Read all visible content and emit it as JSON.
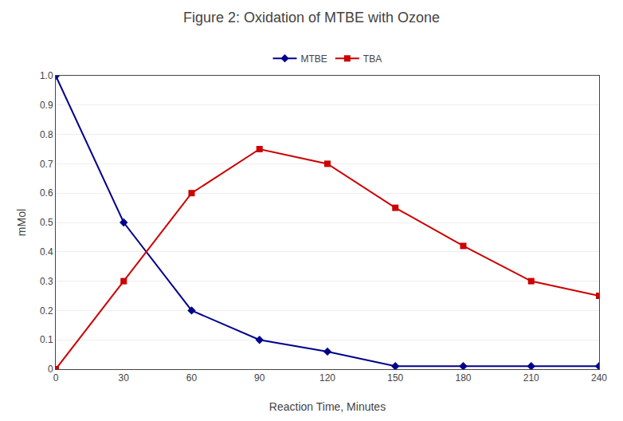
{
  "chart_data": {
    "type": "line",
    "title": "Figure 2: Oxidation of MTBE with Ozone",
    "x_label": "Reaction Time, Minutes",
    "y_label": "mMol",
    "x": [
      0,
      30,
      60,
      90,
      120,
      150,
      180,
      210,
      240
    ],
    "series": [
      {
        "name": "MTBE",
        "color": "#00008B",
        "marker": "diamond",
        "values": [
          1.0,
          0.5,
          0.2,
          0.1,
          0.06,
          0.01,
          0.01,
          0.01,
          0.01
        ]
      },
      {
        "name": "TBA",
        "color": "#CC0000",
        "marker": "square",
        "values": [
          0.0,
          0.3,
          0.6,
          0.75,
          0.7,
          0.55,
          0.42,
          0.3,
          0.25
        ]
      }
    ],
    "xlim": [
      0,
      240
    ],
    "ylim": [
      0,
      1.0
    ],
    "xticks": [
      0,
      30,
      60,
      90,
      120,
      150,
      180,
      210,
      240
    ],
    "yticks": [
      0,
      0.1,
      0.2,
      0.3,
      0.4,
      0.5,
      0.6,
      0.7,
      0.8,
      0.9,
      {
        "value": 1.0,
        "label": "1.0"
      }
    ],
    "grid": "y",
    "legend": "top"
  }
}
